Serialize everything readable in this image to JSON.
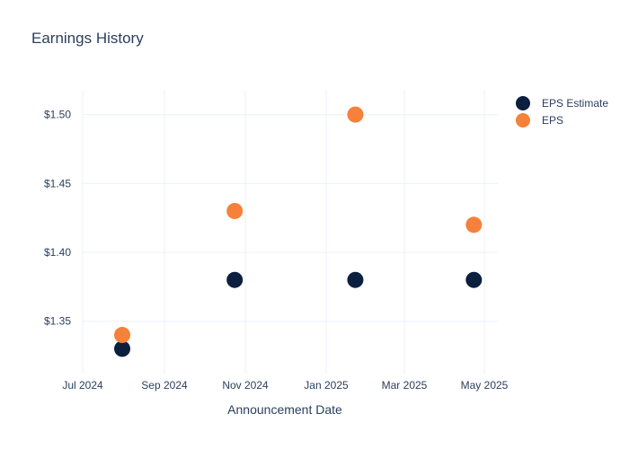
{
  "chart_data": {
    "type": "scatter",
    "title": "Earnings History",
    "xlabel": "Announcement Date",
    "ylabel": "",
    "x_ticks": [
      "Jul 2024",
      "Sep 2024",
      "Nov 2024",
      "Jan 2025",
      "Mar 2025",
      "May 2025"
    ],
    "y_ticks": [
      "$1.35",
      "$1.40",
      "$1.45",
      "$1.50"
    ],
    "ylim": [
      1.312,
      1.518
    ],
    "grid": true,
    "legend": "top-right",
    "x_dates": [
      "2024-07-31",
      "2024-10-24",
      "2025-01-23",
      "2025-04-23"
    ],
    "series": [
      {
        "name": "EPS Estimate",
        "color": "#0b1f3f",
        "values": [
          1.33,
          1.38,
          1.38,
          1.38
        ]
      },
      {
        "name": "EPS",
        "color": "#f5813a",
        "values": [
          1.34,
          1.43,
          1.5,
          1.42
        ]
      }
    ]
  }
}
